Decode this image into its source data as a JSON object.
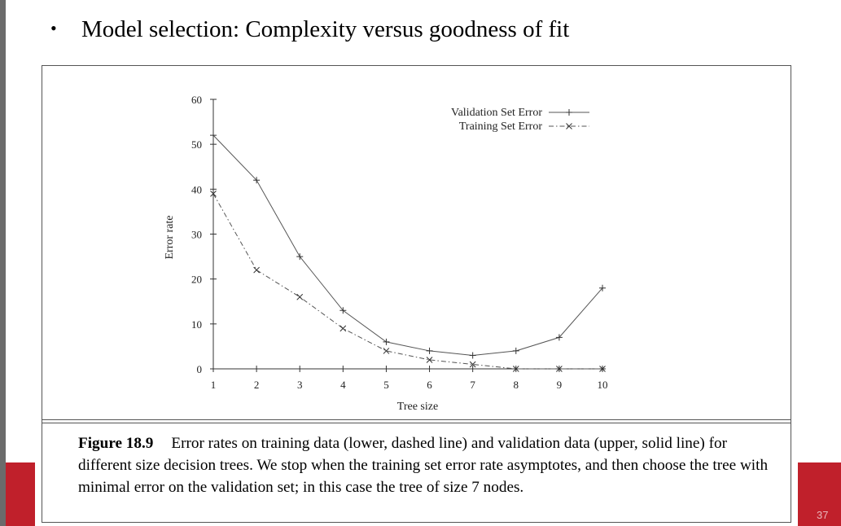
{
  "slide": {
    "heading": "Model selection: Complexity versus goodness of fit",
    "bullet": "•",
    "page_number": "37"
  },
  "caption": {
    "label": "Figure 18.9",
    "text": "Error rates on training data (lower, dashed line) and validation data (upper, solid line) for different size decision trees. We stop when the training set error rate asymptotes, and then choose the tree with minimal error on the validation set; in this case the tree of size 7 nodes."
  },
  "chart_data": {
    "type": "line",
    "title": "",
    "xlabel": "Tree size",
    "ylabel": "Error rate",
    "x": [
      1,
      2,
      3,
      4,
      5,
      6,
      7,
      8,
      9,
      10
    ],
    "xlim": [
      1,
      10
    ],
    "ylim": [
      0,
      60
    ],
    "yticks": [
      0,
      10,
      20,
      30,
      40,
      50,
      60
    ],
    "legend_position": "top-right",
    "series": [
      {
        "name": "Validation Set Error",
        "style": "solid",
        "marker": "+",
        "color": "#555555",
        "values": [
          52,
          42,
          25,
          13,
          6,
          4,
          3,
          4,
          7,
          18
        ]
      },
      {
        "name": "Training Set Error",
        "style": "dashed",
        "marker": "x",
        "color": "#555555",
        "values": [
          39,
          22,
          16,
          9,
          4,
          2,
          1,
          0,
          0,
          0
        ]
      }
    ]
  }
}
